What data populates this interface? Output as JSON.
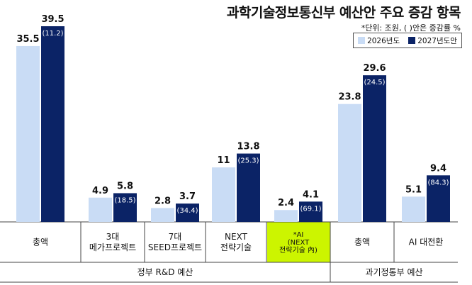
{
  "title": "과학기술정보통신부 예산안 주요 증감 항목",
  "unit_note": "*단위: 조원, ( )안은 증감률 %",
  "colors": {
    "series_2026": "#c9dcf5",
    "series_2027": "#0b2366",
    "highlight": "#ccf500",
    "grid": "#444444"
  },
  "legend": [
    {
      "label": "2026년도",
      "color": "#c9dcf5"
    },
    {
      "label": "2027년도안",
      "color": "#0b2366"
    }
  ],
  "chart_data": {
    "type": "bar",
    "categories": [
      [
        "총액"
      ],
      [
        "3대",
        "메가프로젝트"
      ],
      [
        "7대",
        "SEED프로젝트"
      ],
      [
        "NEXT",
        "전략기술"
      ],
      [
        "*AI",
        "(NEXT",
        "전략기술 內)"
      ],
      [
        "총액"
      ],
      [
        "AI 대전환"
      ]
    ],
    "highlight_index": 4,
    "series": [
      {
        "name": "2026년도",
        "values": [
          35.5,
          4.9,
          2.8,
          11,
          2.4,
          23.8,
          5.1
        ],
        "labels": [
          "35.5",
          "4.9",
          "2.8",
          "11",
          "2.4",
          "23.8",
          "5.1"
        ]
      },
      {
        "name": "2027년도안",
        "values": [
          39.5,
          5.8,
          3.7,
          13.8,
          4.1,
          29.6,
          9.4
        ],
        "labels": [
          "39.5",
          "5.8",
          "3.7",
          "13.8",
          "4.1",
          "29.6",
          "9.4"
        ],
        "change_labels": [
          "(11.2)",
          "(18.5)",
          "(34.4)",
          "(25.3)",
          "(69.1)",
          "(24.5)",
          "(84.3)"
        ]
      }
    ],
    "groups": [
      {
        "label": "정부 R&D 예산",
        "from": 0,
        "to": 4
      },
      {
        "label": "과기정통부 예산",
        "from": 5,
        "to": 6
      }
    ],
    "ylim": [
      0,
      39.5
    ],
    "grid": false,
    "legend_position": "top-right"
  }
}
